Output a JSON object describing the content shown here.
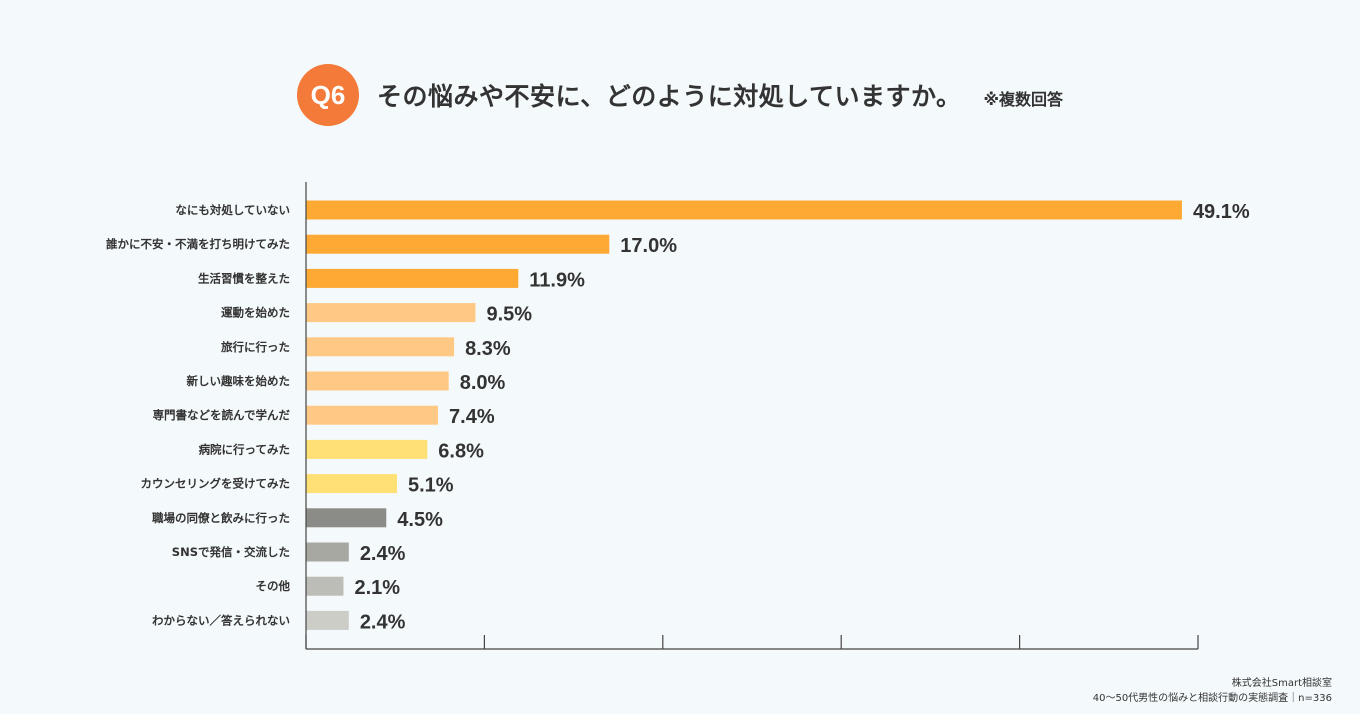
{
  "header": {
    "badge": "Q6",
    "title": "その悩みや不安に、どのように対処していますか。",
    "note": "※複数回答"
  },
  "chart_data": {
    "type": "bar",
    "orientation": "horizontal",
    "categories": [
      "なにも対処していない",
      "誰かに不安・不満を打ち明けてみた",
      "生活習慣を整えた",
      "運動を始めた",
      "旅行に行った",
      "新しい趣味を始めた",
      "専門書などを読んで学んだ",
      "病院に行ってみた",
      "カウンセリングを受けてみた",
      "職場の同僚と飲みに行った",
      "SNSで発信・交流した",
      "その他",
      "わからない／答えられない"
    ],
    "values": [
      49.1,
      17.0,
      11.9,
      9.5,
      8.3,
      8.0,
      7.4,
      6.8,
      5.1,
      4.5,
      2.4,
      2.1,
      2.4
    ],
    "value_labels": [
      "49.1%",
      "17.0%",
      "11.9%",
      "9.5%",
      "8.3%",
      "8.0%",
      "7.4%",
      "6.8%",
      "5.1%",
      "4.5%",
      "2.4%",
      "2.1%",
      "2.4%"
    ],
    "colors": [
      "#ffa935",
      "#ffa935",
      "#ffa935",
      "#ffc985",
      "#ffc985",
      "#ffc985",
      "#ffc985",
      "#ffe074",
      "#ffe074",
      "#8b8b88",
      "#a8a8a2",
      "#bdbdb7",
      "#cdcdc8"
    ],
    "xlim": [
      0,
      50
    ],
    "x_ticks": [
      0,
      10,
      20,
      30,
      40,
      50
    ],
    "unit": "%"
  },
  "footer": {
    "company": "株式会社Smart相談室",
    "source": "40〜50代男性の悩みと相談行動の実態調査｜n=336"
  }
}
